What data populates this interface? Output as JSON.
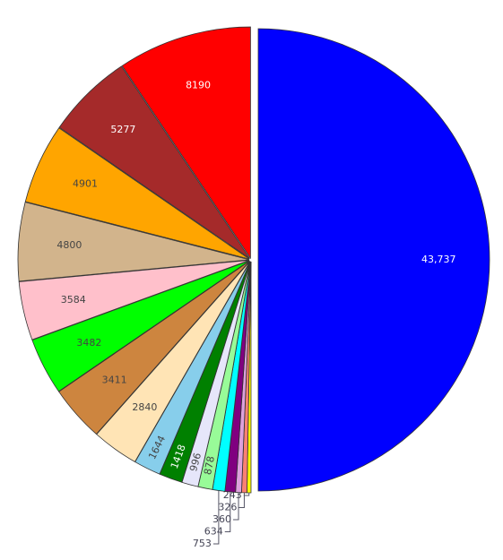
{
  "chart_data": {
    "type": "pie",
    "values": [
      43737,
      243,
      326,
      360,
      634,
      753,
      878,
      996,
      1418,
      1644,
      2840,
      3411,
      3482,
      3584,
      4800,
      4901,
      5277,
      8190
    ],
    "value_labels": [
      "43,737",
      "243",
      "326",
      "360",
      "634",
      "753",
      "878",
      "996",
      "1418",
      "1644",
      "2840",
      "3411",
      "3482",
      "3584",
      "4800",
      "4901",
      "5277",
      "8190"
    ],
    "colors": [
      "#0000ff",
      "#ffff00",
      "#fa8072",
      "#dda0dd",
      "#800080",
      "#00ffff",
      "#98fb98",
      "#e6e6fa",
      "#008000",
      "#87ceeb",
      "#ffe4b5",
      "#cd853f",
      "#00ff00",
      "#ffc0cb",
      "#d2b48c",
      "#ffa500",
      "#a52a2a",
      "#ff0000"
    ]
  }
}
